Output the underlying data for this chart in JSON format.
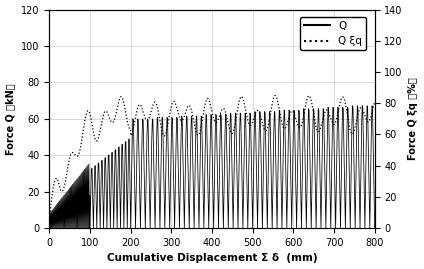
{
  "xlabel": "Cumulative Displacement Σ δ  (mm)",
  "ylabel_left": "Force Q （kN）",
  "ylabel_right": "Force Q ξq （%）",
  "xlim": [
    0,
    800
  ],
  "ylim_left": [
    0,
    120
  ],
  "ylim_right": [
    0,
    140
  ],
  "xticks": [
    0,
    100,
    200,
    300,
    400,
    500,
    600,
    700,
    800
  ],
  "yticks_left": [
    0,
    20,
    40,
    60,
    80,
    100,
    120
  ],
  "yticks_right": [
    0,
    20,
    40,
    60,
    80,
    100,
    120,
    140
  ],
  "legend_labels": [
    "Q",
    "Q ξq"
  ],
  "line_color": "#000000",
  "dashed_color": "#000000",
  "grid_color": "#cccccc",
  "background_color": "#ffffff"
}
